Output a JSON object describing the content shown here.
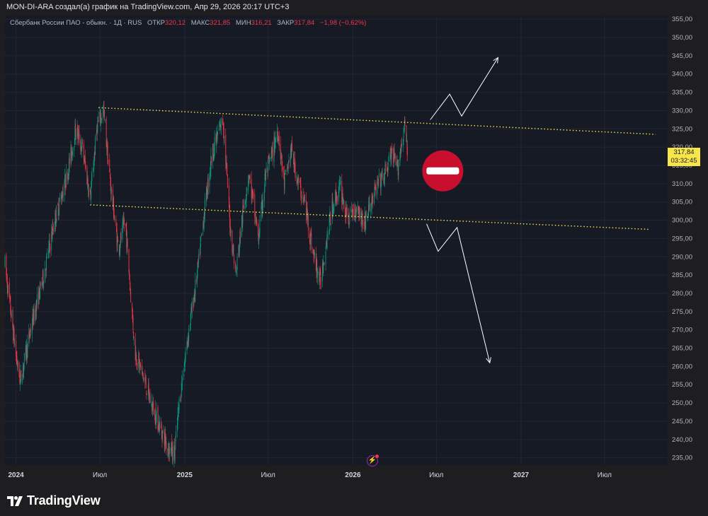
{
  "header": {
    "caption": "MON-DI-ARA создал(а) график на TradingView.com, Апр 29, 2026 20:17 UTC+3"
  },
  "legend": {
    "symbol": "Сбербанк России ПАО - обыкн. · 1Д · RUS",
    "open_label": "ОТКР",
    "open_value": "320,12",
    "high_label": "МАКС",
    "high_value": "321,85",
    "low_label": "МИН",
    "low_value": "316,21",
    "close_label": "ЗАКР",
    "close_value": "317,84",
    "change": "−1,98 (−0,62%)"
  },
  "price_tag": {
    "price": "317,84",
    "countdown": "03:32:45"
  },
  "footer": {
    "brand": "TradingView"
  },
  "colors": {
    "up": "#089981",
    "down": "#f23645",
    "trendline": "#f7e54a",
    "arrow": "#ffffff",
    "stop_sign": "#c8102e"
  },
  "icons": [
    "tradingview-logo-icon",
    "stop-sign-icon",
    "lightning-icon"
  ],
  "chart_data": {
    "type": "candlestick",
    "title": "",
    "instrument": "Сбербанк России ПАО - обыкн.",
    "interval": "1Д",
    "y_ticks": [
      "355,00",
      "350,00",
      "345,00",
      "340,00",
      "335,00",
      "330,00",
      "325,00",
      "320,00",
      "315,00",
      "310,00",
      "305,00",
      "300,00",
      "295,00",
      "290,00",
      "285,00",
      "280,00",
      "275,00",
      "270,00",
      "265,00",
      "260,00",
      "255,00",
      "250,00",
      "245,00",
      "240,00",
      "235,00"
    ],
    "ylim": [
      233,
      356
    ],
    "x_ticks": [
      "2024",
      "Июл",
      "2025",
      "Июл",
      "2026",
      "Июл",
      "2027",
      "Июл"
    ],
    "x_tick_dates": [
      "2024-01-01",
      "2024-07-01",
      "2025-01-01",
      "2025-07-01",
      "2026-01-01",
      "2026-07-01",
      "2027-01-01",
      "2027-07-01"
    ],
    "xlim": [
      "2023-12-08",
      "2027-11-15"
    ],
    "price_path": [
      [
        "2023-12-08",
        288
      ],
      [
        "2024-01-02",
        262
      ],
      [
        "2024-01-10",
        256
      ],
      [
        "2024-02-05",
        272
      ],
      [
        "2024-03-01",
        285
      ],
      [
        "2024-03-25",
        300
      ],
      [
        "2024-04-20",
        312
      ],
      [
        "2024-05-10",
        325
      ],
      [
        "2024-05-25",
        319
      ],
      [
        "2024-06-10",
        306
      ],
      [
        "2024-06-25",
        326
      ],
      [
        "2024-07-09",
        330
      ],
      [
        "2024-07-22",
        312
      ],
      [
        "2024-08-10",
        292
      ],
      [
        "2024-08-25",
        300
      ],
      [
        "2024-09-15",
        264
      ],
      [
        "2024-10-01",
        258
      ],
      [
        "2024-10-20",
        250
      ],
      [
        "2024-11-10",
        243
      ],
      [
        "2024-11-25",
        238
      ],
      [
        "2024-12-10",
        236
      ],
      [
        "2024-12-20",
        250
      ],
      [
        "2025-01-10",
        270
      ],
      [
        "2025-01-28",
        285
      ],
      [
        "2025-02-15",
        305
      ],
      [
        "2025-03-01",
        318
      ],
      [
        "2025-03-25",
        328
      ],
      [
        "2025-04-10",
        298
      ],
      [
        "2025-04-22",
        285
      ],
      [
        "2025-05-05",
        300
      ],
      [
        "2025-05-20",
        313
      ],
      [
        "2025-06-10",
        295
      ],
      [
        "2025-06-25",
        312
      ],
      [
        "2025-07-10",
        318
      ],
      [
        "2025-07-22",
        325
      ],
      [
        "2025-08-05",
        310
      ],
      [
        "2025-08-20",
        319
      ],
      [
        "2025-09-05",
        310
      ],
      [
        "2025-09-20",
        304
      ],
      [
        "2025-10-05",
        292
      ],
      [
        "2025-10-22",
        283
      ],
      [
        "2025-11-05",
        295
      ],
      [
        "2025-11-20",
        305
      ],
      [
        "2025-12-05",
        309
      ],
      [
        "2025-12-20",
        300
      ],
      [
        "2026-01-10",
        304
      ],
      [
        "2026-01-25",
        299
      ],
      [
        "2026-02-10",
        305
      ],
      [
        "2026-02-25",
        310
      ],
      [
        "2026-03-10",
        312
      ],
      [
        "2026-03-25",
        318
      ],
      [
        "2026-04-08",
        314
      ],
      [
        "2026-04-20",
        324
      ],
      [
        "2026-04-25",
        326
      ],
      [
        "2026-04-29",
        317.84
      ]
    ],
    "last_candle": {
      "date": "2026-04-29",
      "open": 320.12,
      "high": 321.85,
      "low": 316.21,
      "close": 317.84
    },
    "annotations": {
      "upper_trendline": [
        [
          "2024-06-28",
          330.8
        ],
        [
          "2027-10-20",
          323.5
        ]
      ],
      "lower_trendline": [
        [
          "2024-06-10",
          304.2
        ],
        [
          "2027-10-05",
          297.5
        ]
      ],
      "up_arrow": [
        [
          "2026-06-18",
          327.5
        ],
        [
          "2026-07-30",
          334.5
        ],
        [
          "2026-08-25",
          328.5
        ],
        [
          "2026-11-12",
          344.5
        ]
      ],
      "down_arrow": [
        [
          "2026-06-10",
          299
        ],
        [
          "2026-07-05",
          291.5
        ],
        [
          "2026-08-15",
          298
        ],
        [
          "2026-10-25",
          261
        ]
      ],
      "stop_sign": [
        "2026-07-15",
        313.5
      ]
    }
  }
}
